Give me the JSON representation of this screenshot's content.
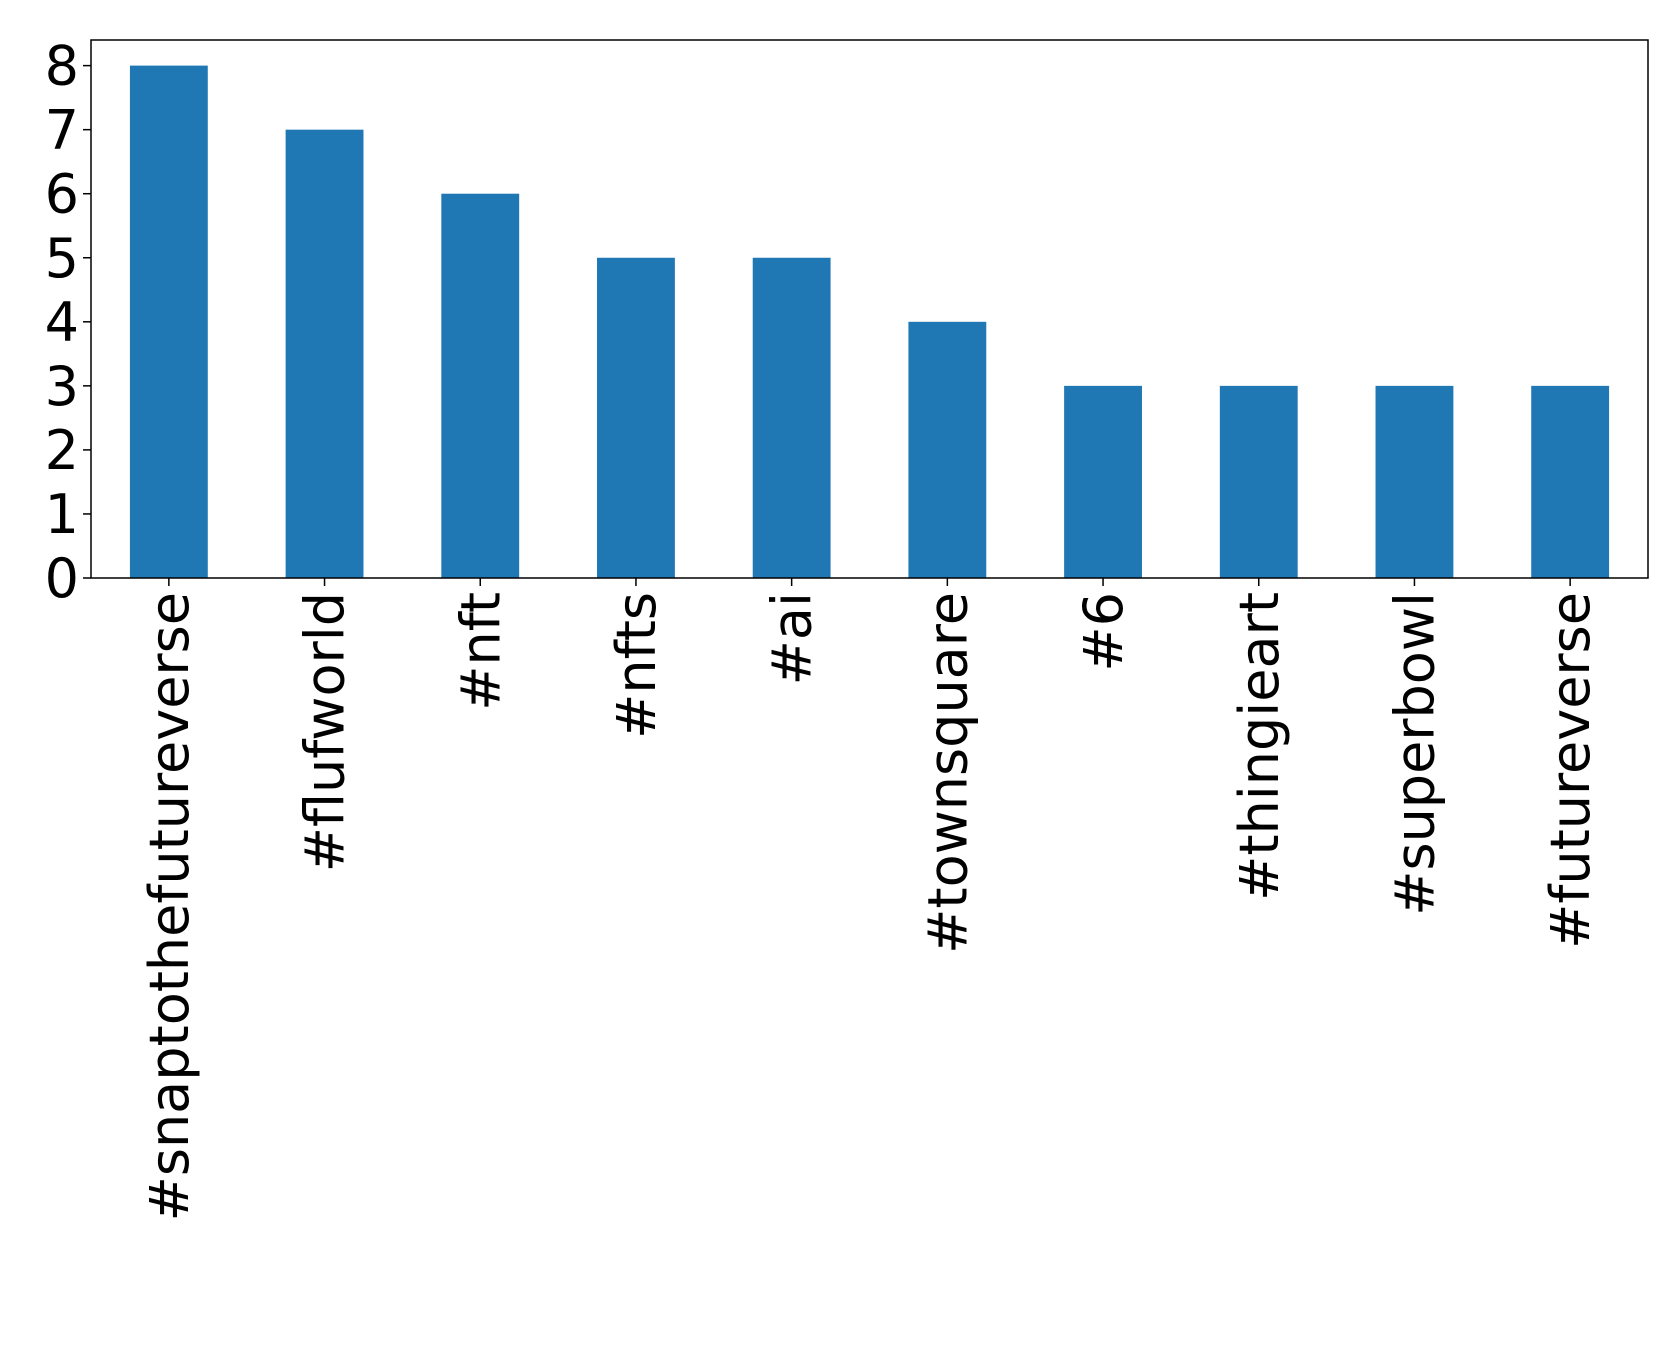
{
  "chart_data": {
    "type": "bar",
    "categories": [
      "#snaptothefutureverse",
      "#flufworld",
      "#nft",
      "#nfts",
      "#ai",
      "#townsquare",
      "#6",
      "#thingieart",
      "#superbowl",
      "#futureverse"
    ],
    "values": [
      8,
      7,
      6,
      5,
      5,
      4,
      3,
      3,
      3,
      3
    ],
    "color": "#1f77b4",
    "ylim": [
      0,
      8.4
    ],
    "yticks": [
      0,
      1,
      2,
      3,
      4,
      5,
      6,
      7,
      8
    ],
    "grid": false
  }
}
